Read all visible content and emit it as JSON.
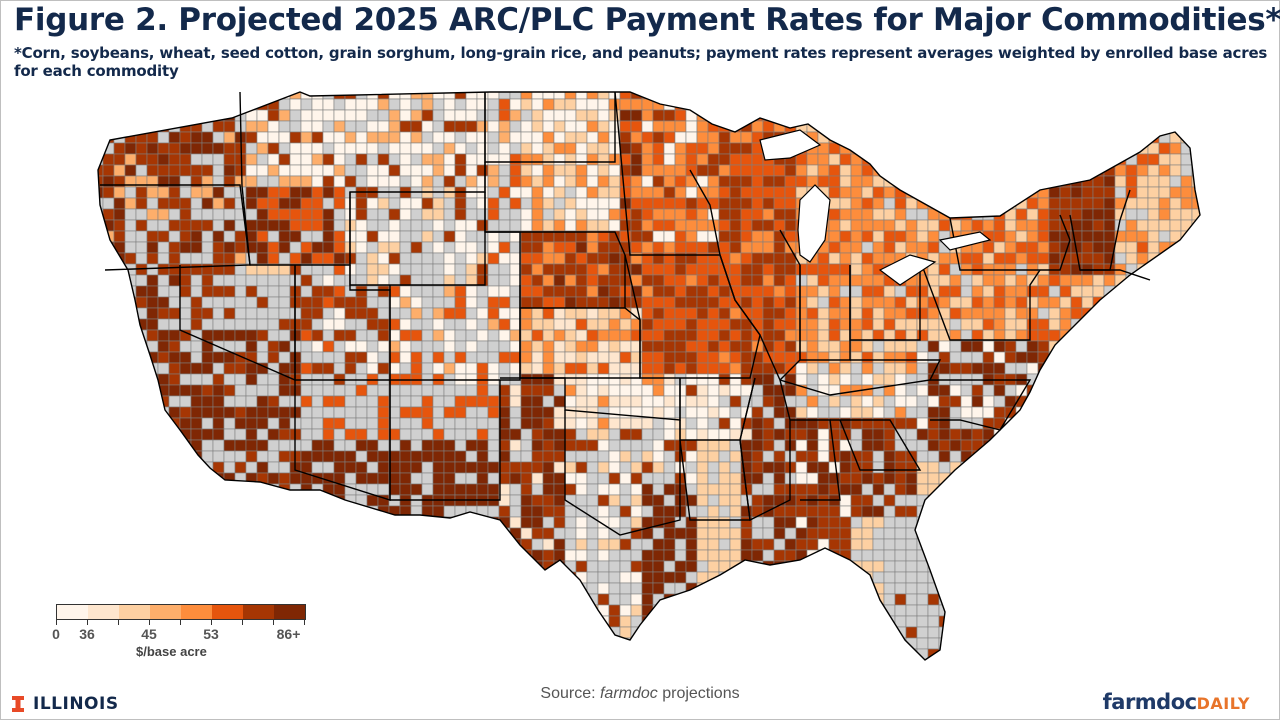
{
  "header": {
    "title": "Figure 2. Projected 2025 ARC/PLC Payment Rates for Major Commodities*",
    "subtitle": "*Corn, soybeans, wheat, seed cotton, grain sorghum, long-grain rice, and peanuts; payment rates represent averages weighted by enrolled base acres for each commodity"
  },
  "legend": {
    "colors": [
      "#fff5eb",
      "#fee6ce",
      "#fdd0a2",
      "#fdae6b",
      "#fd8d3c",
      "#e6550d",
      "#a63603",
      "#7f2704"
    ],
    "tick_labels": [
      {
        "label": "0",
        "pos": 0
      },
      {
        "label": "36",
        "pos": 1
      },
      {
        "label": "45",
        "pos": 3
      },
      {
        "label": "53",
        "pos": 5
      },
      {
        "label": "86+",
        "pos": 7
      }
    ],
    "unit": "$/base acre",
    "no_data_color": "#d0d0d0"
  },
  "map": {
    "type": "choropleth",
    "geography": "US counties (contiguous)",
    "variable": "Projected 2025 ARC/PLC payment rate",
    "regions": [
      {
        "region": "Pacific Northwest (WA/OR/ID)",
        "level": "high",
        "class_index": 6
      },
      {
        "region": "Montana",
        "level": "low-mid",
        "class_index": 2
      },
      {
        "region": "North Dakota / South Dakota",
        "level": "low-mid",
        "class_index": 2
      },
      {
        "region": "Nebraska",
        "level": "high",
        "class_index": 6
      },
      {
        "region": "Kansas",
        "level": "mid",
        "class_index": 3
      },
      {
        "region": "Iowa / Illinois / Minnesota",
        "level": "mid-high",
        "class_index": 5
      },
      {
        "region": "Missouri / Oklahoma",
        "level": "low",
        "class_index": 1
      },
      {
        "region": "Mississippi Delta (AR/MS/LA)",
        "level": "very high",
        "class_index": 7
      },
      {
        "region": "Georgia / Alabama / Carolinas",
        "level": "high",
        "class_index": 6
      },
      {
        "region": "Texas Panhandle / South Texas",
        "level": "high",
        "class_index": 6
      },
      {
        "region": "Arizona (south)",
        "level": "very high",
        "class_index": 7
      },
      {
        "region": "California Central Valley",
        "level": "very high",
        "class_index": 7
      },
      {
        "region": "Nevada / Utah / Florida / Appalachia",
        "level": "no data",
        "class_index": -1
      },
      {
        "region": "Northeast (NY/PA/New England)",
        "level": "mid",
        "class_index": 4
      }
    ]
  },
  "footer": {
    "source_prefix": "Source: ",
    "source_italic": "farmdoc",
    "source_suffix": " projections",
    "illinois_label": "ILLINOIS",
    "farmdoc_label": "farmdoc",
    "daily_label": "DAILY"
  }
}
